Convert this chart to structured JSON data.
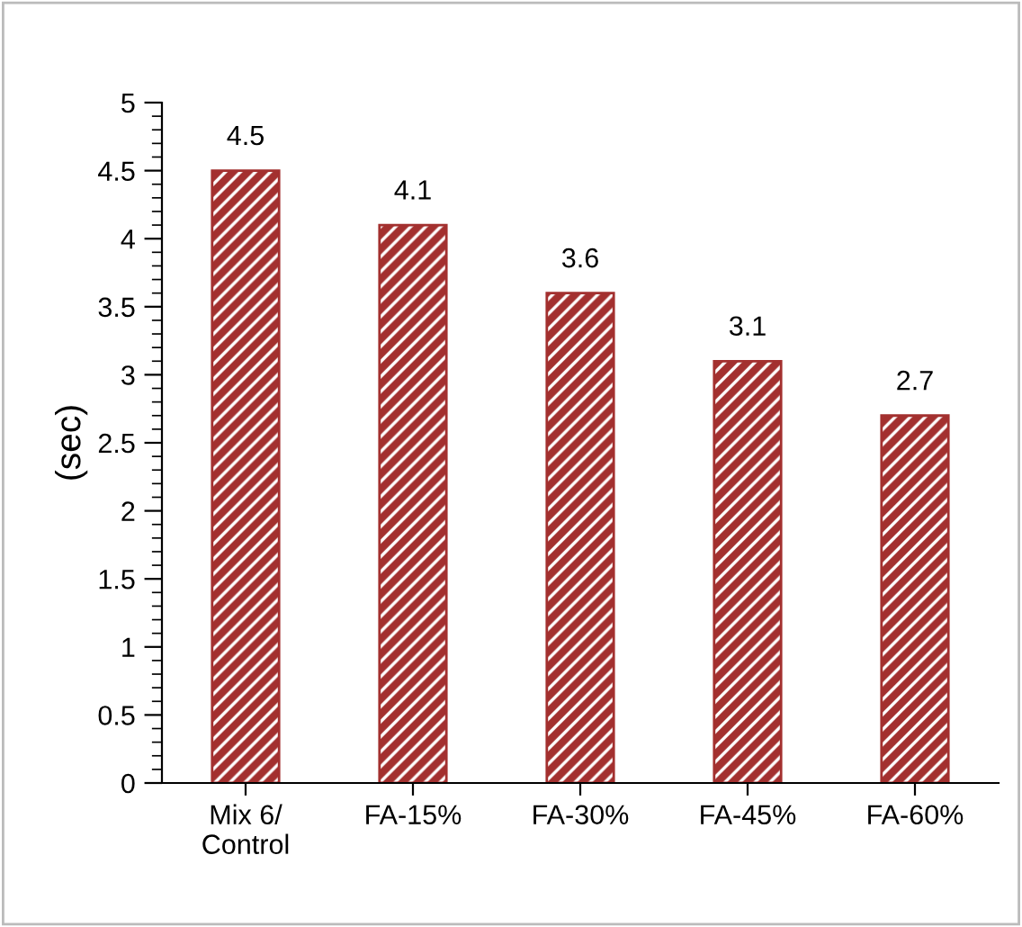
{
  "chart_data": {
    "type": "bar",
    "ylabel": "(sec)",
    "categories": [
      "Mix 6/\nControl",
      "FA-15%",
      "FA-30%",
      "FA-45%",
      "FA-60%"
    ],
    "values": [
      4.5,
      4.1,
      3.6,
      3.1,
      2.7
    ],
    "color": "#a3302f",
    "ylim": [
      0,
      5
    ],
    "yticks": [
      0,
      0.5,
      1,
      1.5,
      2,
      2.5,
      3,
      3.5,
      4,
      4.5,
      5
    ],
    "data_labels": true,
    "grid": false,
    "legend": false
  }
}
